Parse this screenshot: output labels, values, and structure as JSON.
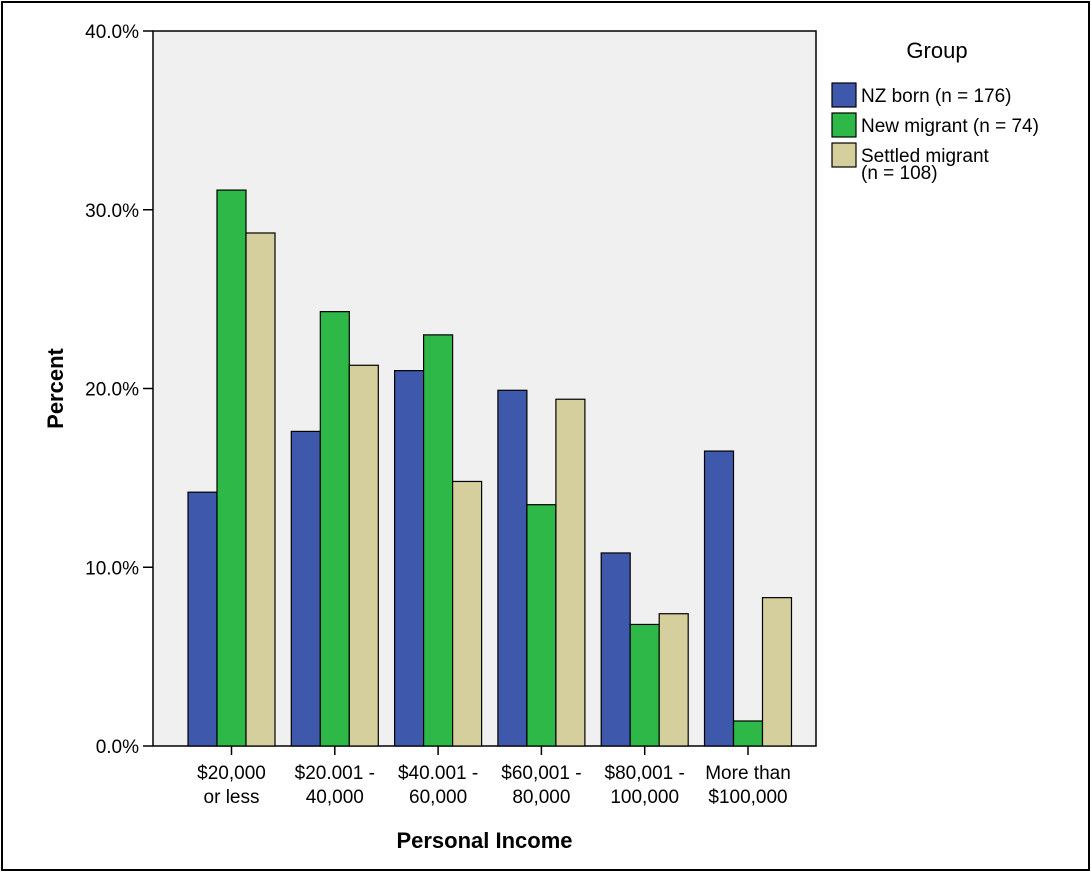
{
  "chart_data": {
    "type": "bar",
    "xlabel": "Personal Income",
    "ylabel": "Percent",
    "ylim": [
      0,
      40
    ],
    "yticks": [
      "0.0%",
      "10.0%",
      "20.0%",
      "30.0%",
      "40.0%"
    ],
    "categories": [
      [
        "$20,000",
        "or less"
      ],
      [
        "$20.001 -",
        "40,000"
      ],
      [
        "$40.001 -",
        "60,000"
      ],
      [
        "$60,001 -",
        "80,000"
      ],
      [
        "$80,001 -",
        "100,000"
      ],
      [
        "More than",
        "$100,000"
      ]
    ],
    "legend_title": "Group",
    "legend_position": "right",
    "grid": false,
    "series": [
      {
        "name": [
          "NZ born (n = 176)"
        ],
        "color": "#3e58ac",
        "values": [
          14.2,
          17.6,
          21.0,
          19.9,
          10.8,
          16.5
        ]
      },
      {
        "name": [
          "New migrant (n = 74)"
        ],
        "color": "#2eb848",
        "values": [
          31.1,
          24.3,
          23.0,
          13.5,
          6.8,
          1.4
        ]
      },
      {
        "name": [
          "Settled migrant",
          "(n = 108)"
        ],
        "color": "#d4cf9c",
        "values": [
          28.7,
          21.3,
          14.8,
          19.4,
          7.4,
          8.3
        ]
      }
    ],
    "plot_background": "#f0f0f0"
  }
}
